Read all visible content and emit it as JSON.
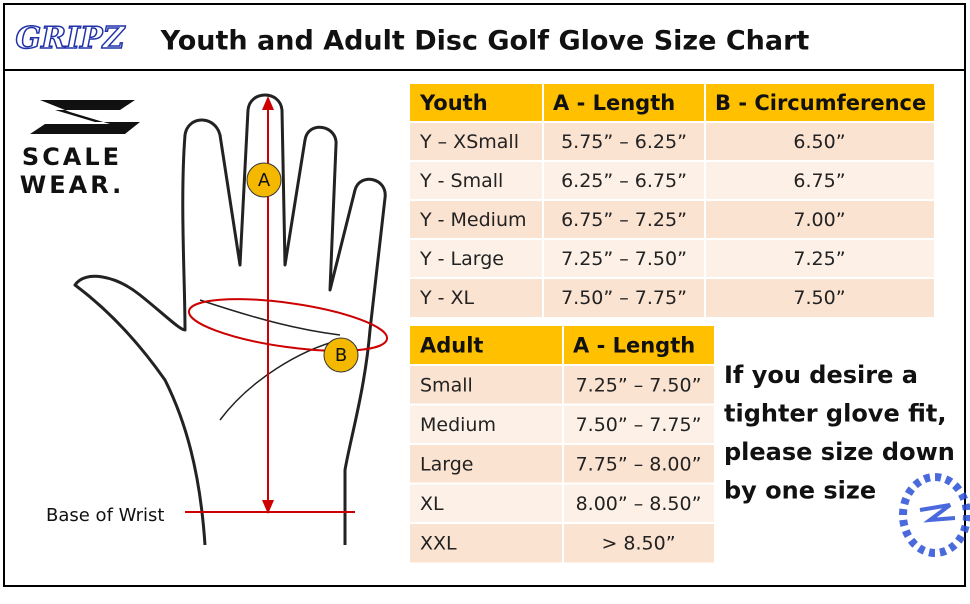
{
  "header": {
    "logo": "GRIPZ",
    "title": "Youth and Adult Disc Golf Glove Size Chart"
  },
  "brand": {
    "line1": "SCALE",
    "line2": "WEAR."
  },
  "diagram": {
    "label_a": "A",
    "label_b": "B",
    "wrist": "Base of Wrist"
  },
  "youth_table": {
    "header": [
      "Youth",
      "A - Length",
      "B - Circumference"
    ],
    "rows": [
      [
        "Y – XSmall",
        "5.75” – 6.25”",
        "6.50”"
      ],
      [
        "Y - Small",
        "6.25” – 6.75”",
        "6.75”"
      ],
      [
        "Y - Medium",
        "6.75” – 7.25”",
        "7.00”"
      ],
      [
        "Y - Large",
        "7.25” – 7.50”",
        "7.25”"
      ],
      [
        "Y - XL",
        "7.50” – 7.75”",
        "7.50”"
      ]
    ]
  },
  "adult_table": {
    "header": [
      "Adult",
      "A - Length"
    ],
    "rows": [
      [
        "Small",
        "7.25” – 7.50”"
      ],
      [
        "Medium",
        "7.50” – 7.75”"
      ],
      [
        "Large",
        "7.75” – 8.00”"
      ],
      [
        "XL",
        "8.00” – 8.50”"
      ],
      [
        "XXL",
        "> 8.50”"
      ]
    ]
  },
  "note": [
    "If you desire a",
    "tighter glove fit,",
    "please size down",
    "by one size"
  ]
}
